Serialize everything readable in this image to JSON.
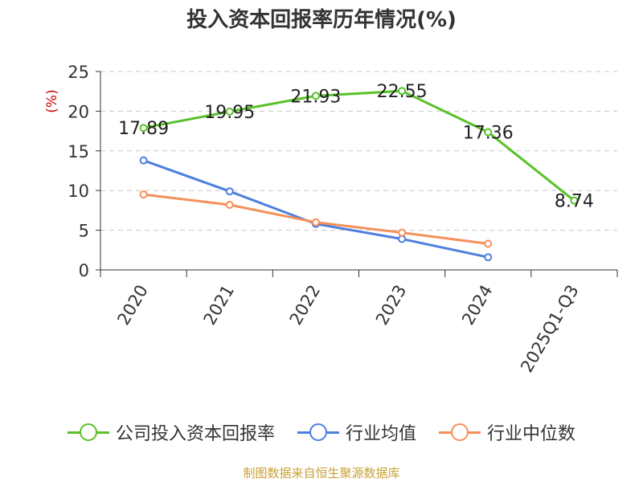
{
  "chart_data": {
    "type": "line",
    "title": "投入资本回报率历年情况(%)",
    "ylabel": "(%)",
    "xlabel": "",
    "ylim": [
      0,
      25
    ],
    "yticks": [
      0,
      5,
      10,
      15,
      20,
      25
    ],
    "grid": true,
    "legend_position": "bottom",
    "categories": [
      "2020",
      "2021",
      "2022",
      "2023",
      "2024",
      "2025Q1-Q3"
    ],
    "series": [
      {
        "name": "公司投入资本回报率",
        "color": "#5ac12a",
        "show_labels": true,
        "values": [
          17.89,
          19.95,
          21.93,
          22.55,
          17.36,
          8.74
        ]
      },
      {
        "name": "行业均值",
        "color": "#4e7fde",
        "show_labels": false,
        "values": [
          13.8,
          9.9,
          5.8,
          3.9,
          1.6,
          null
        ]
      },
      {
        "name": "行业中位数",
        "color": "#f5905a",
        "show_labels": false,
        "values": [
          9.5,
          8.2,
          6.0,
          4.7,
          3.3,
          null
        ]
      }
    ]
  },
  "source_note": "制图数据来自恒生聚源数据库"
}
